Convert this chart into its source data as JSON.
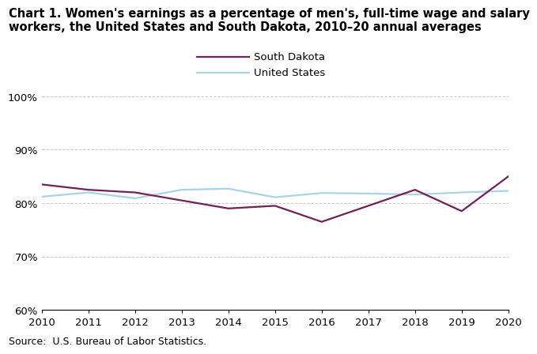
{
  "title_line1": "Chart 1. Women's earnings as a percentage of men's, full-time wage and salary",
  "title_line2": "workers, the United States and South Dakota, 2010–20 annual averages",
  "years": [
    2010,
    2011,
    2012,
    2013,
    2014,
    2015,
    2016,
    2017,
    2018,
    2019,
    2020
  ],
  "south_dakota": [
    83.5,
    82.5,
    82.0,
    80.5,
    79.0,
    79.5,
    76.5,
    79.5,
    82.5,
    78.5,
    85.0
  ],
  "united_states": [
    81.2,
    82.0,
    80.9,
    82.5,
    82.7,
    81.1,
    81.9,
    81.8,
    81.6,
    82.0,
    82.3
  ],
  "sd_color": "#722057",
  "us_color": "#a8d4e6",
  "ylim": [
    60,
    101
  ],
  "yticks": [
    60,
    70,
    80,
    90,
    100
  ],
  "ytick_labels": [
    "60%",
    "70%",
    "80%",
    "90%",
    "100%"
  ],
  "source": "Source:  U.S. Bureau of Labor Statistics.",
  "legend_labels": [
    "South Dakota",
    "United States"
  ],
  "title_fontsize": 10.5,
  "axis_fontsize": 9.5,
  "legend_fontsize": 9.5,
  "source_fontsize": 9,
  "line_width": 1.6
}
